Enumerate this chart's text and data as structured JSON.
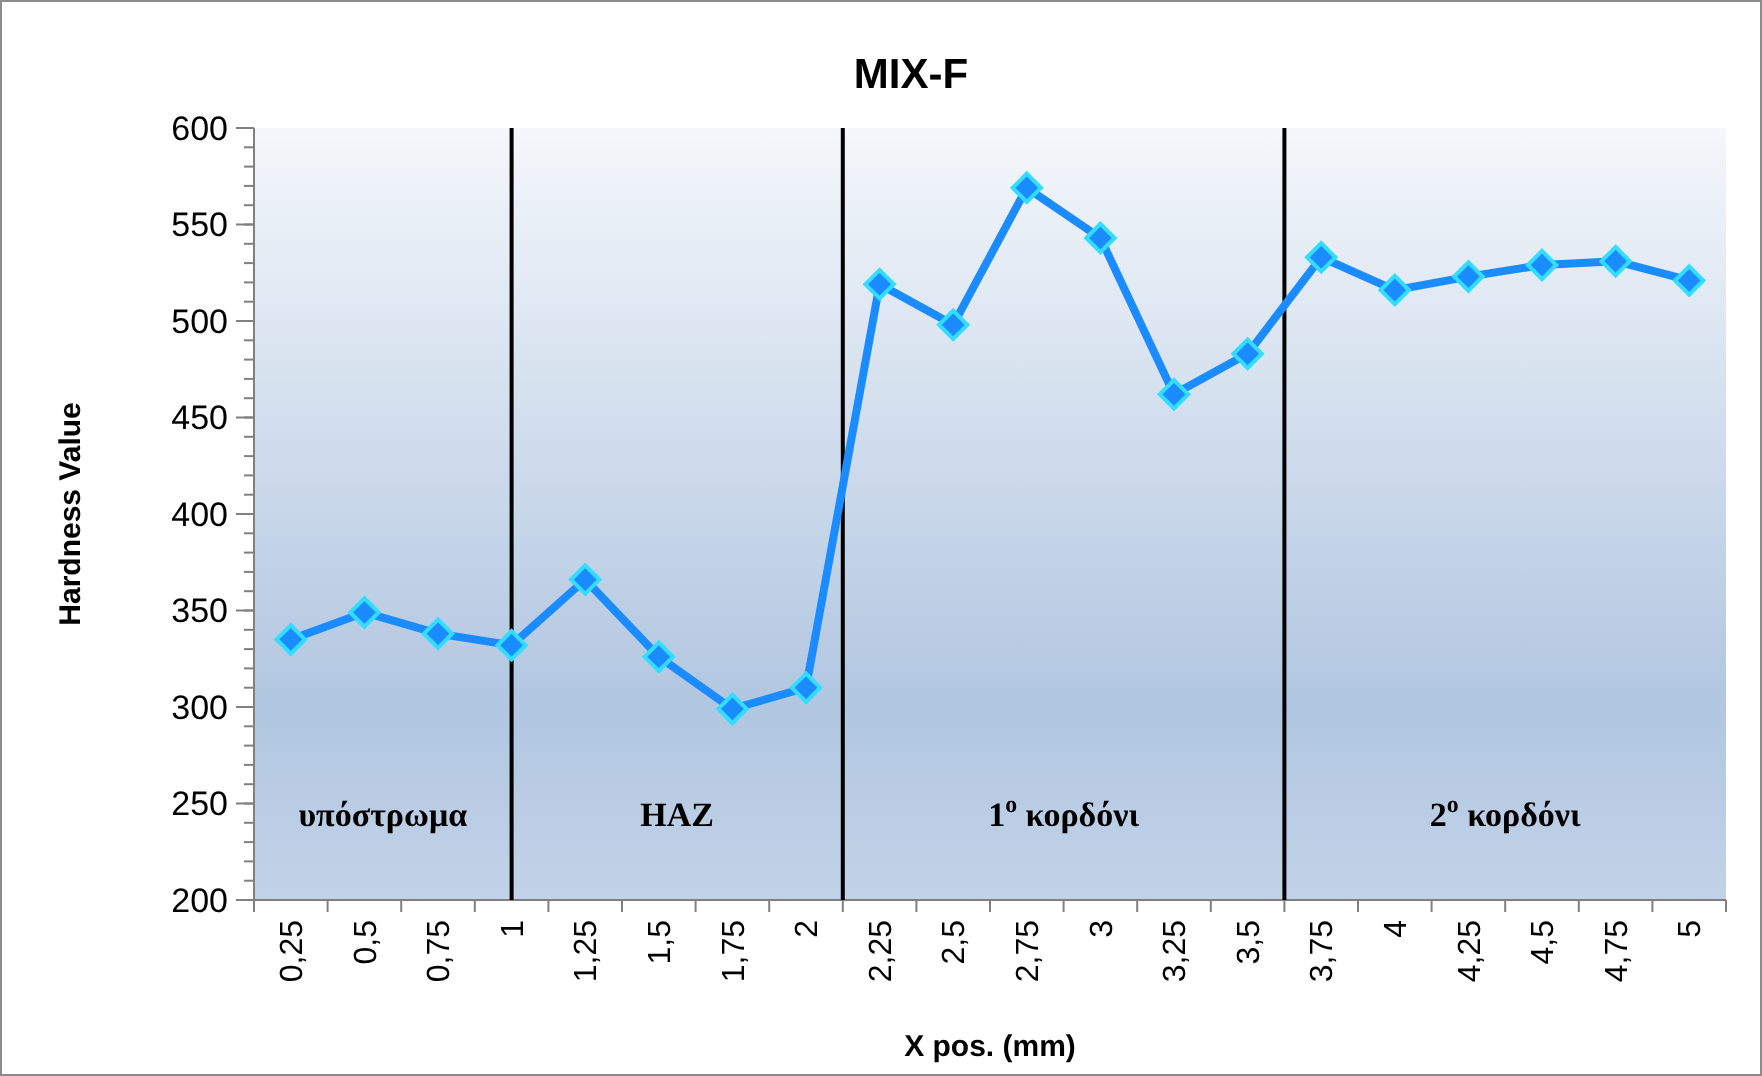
{
  "chart_data": {
    "type": "line",
    "title": "MIX-F",
    "xlabel": "X pos. (mm)",
    "ylabel": "Hardness Value",
    "x": [
      0.25,
      0.5,
      0.75,
      1,
      1.25,
      1.5,
      1.75,
      2,
      2.25,
      2.5,
      2.75,
      3,
      3.25,
      3.5,
      3.75,
      4,
      4.25,
      4.5,
      4.75,
      5
    ],
    "series": [
      {
        "color": "#1a8cff",
        "values": [
          335,
          349,
          338,
          332,
          366,
          326,
          299,
          310,
          519,
          498,
          569,
          543,
          462,
          483,
          533,
          516,
          523,
          529,
          531,
          521
        ]
      }
    ],
    "xlim": [
      0.125,
      5.125
    ],
    "xticks": [
      {
        "value": 0.25,
        "label": "0,25"
      },
      {
        "value": 0.5,
        "label": "0,5"
      },
      {
        "value": 0.75,
        "label": "0,75"
      },
      {
        "value": 1,
        "label": "1"
      },
      {
        "value": 1.25,
        "label": "1,25"
      },
      {
        "value": 1.5,
        "label": "1,5"
      },
      {
        "value": 1.75,
        "label": "1,75"
      },
      {
        "value": 2,
        "label": "2"
      },
      {
        "value": 2.25,
        "label": "2,25"
      },
      {
        "value": 2.5,
        "label": "2,5"
      },
      {
        "value": 2.75,
        "label": "2,75"
      },
      {
        "value": 3,
        "label": "3"
      },
      {
        "value": 3.25,
        "label": "3,25"
      },
      {
        "value": 3.5,
        "label": "3,5"
      },
      {
        "value": 3.75,
        "label": "3,75"
      },
      {
        "value": 4,
        "label": "4"
      },
      {
        "value": 4.25,
        "label": "4,25"
      },
      {
        "value": 4.5,
        "label": "4,5"
      },
      {
        "value": 4.75,
        "label": "4,75"
      },
      {
        "value": 5,
        "label": "5"
      }
    ],
    "ylim": [
      200,
      600
    ],
    "yticks": [
      200,
      250,
      300,
      350,
      400,
      450,
      500,
      550,
      600
    ],
    "marker": "diamond",
    "line_style": "solid",
    "grid": false,
    "ref_lines": [
      {
        "axis": "x",
        "value": 1,
        "color": "#000000"
      },
      {
        "axis": "x",
        "value": 2.125,
        "color": "#000000"
      },
      {
        "axis": "x",
        "value": 3.625,
        "color": "#000000"
      }
    ],
    "annotations": [
      "υπόστρωμα",
      "HAZ",
      "1$^{o}$ κορδόνι",
      "2$^{o}$ κορδόνι"
    ]
  }
}
